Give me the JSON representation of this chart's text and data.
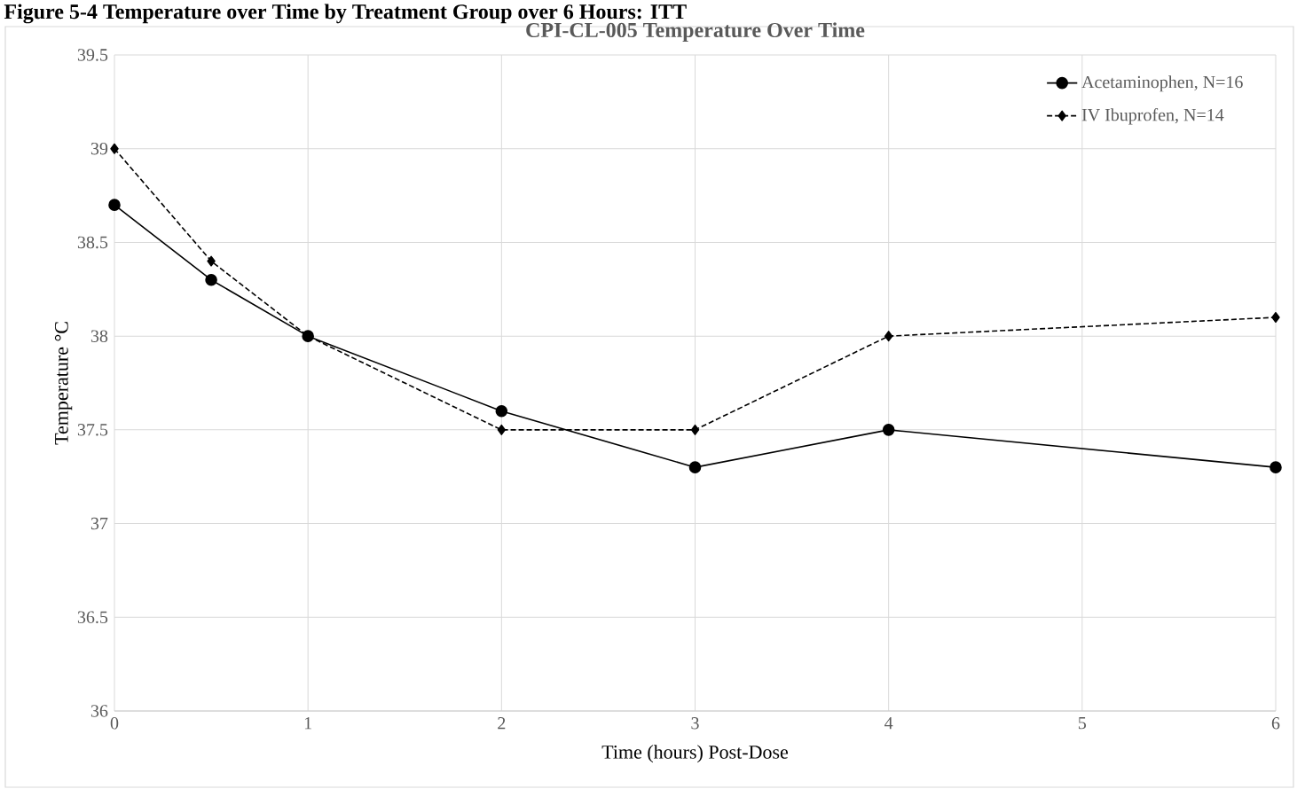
{
  "chart_data": {
    "type": "line",
    "title": "CPI-CL-005 Temperature Over Time",
    "xlabel": "Time (hours) Post-Dose",
    "ylabel": "Temperature °C",
    "annotations": [
      "Figure 5-4 Temperature over Time by Treatment Group over 6 Hours: ITT"
    ],
    "x": [
      0,
      0.5,
      1,
      2,
      3,
      4,
      6
    ],
    "series": [
      {
        "name": "Acetaminophen, N=16",
        "color": "#000000",
        "marker": "circle",
        "line_style": "solid",
        "values": [
          38.7,
          38.3,
          38.0,
          37.6,
          37.3,
          37.5,
          37.3
        ]
      },
      {
        "name": "IV Ibuprofen, N=14",
        "color": "#000000",
        "marker": "diamond",
        "line_style": "dashed",
        "values": [
          39.0,
          38.4,
          38.0,
          37.5,
          37.5,
          38.0,
          38.1
        ]
      }
    ],
    "xlim": [
      0,
      6
    ],
    "xticks": [
      0,
      1,
      2,
      3,
      4,
      5,
      6
    ],
    "ylim": [
      36,
      39.5
    ],
    "yticks": [
      36,
      36.5,
      37,
      37.5,
      38,
      38.5,
      39,
      39.5
    ],
    "grid": true,
    "legend": "top right"
  }
}
